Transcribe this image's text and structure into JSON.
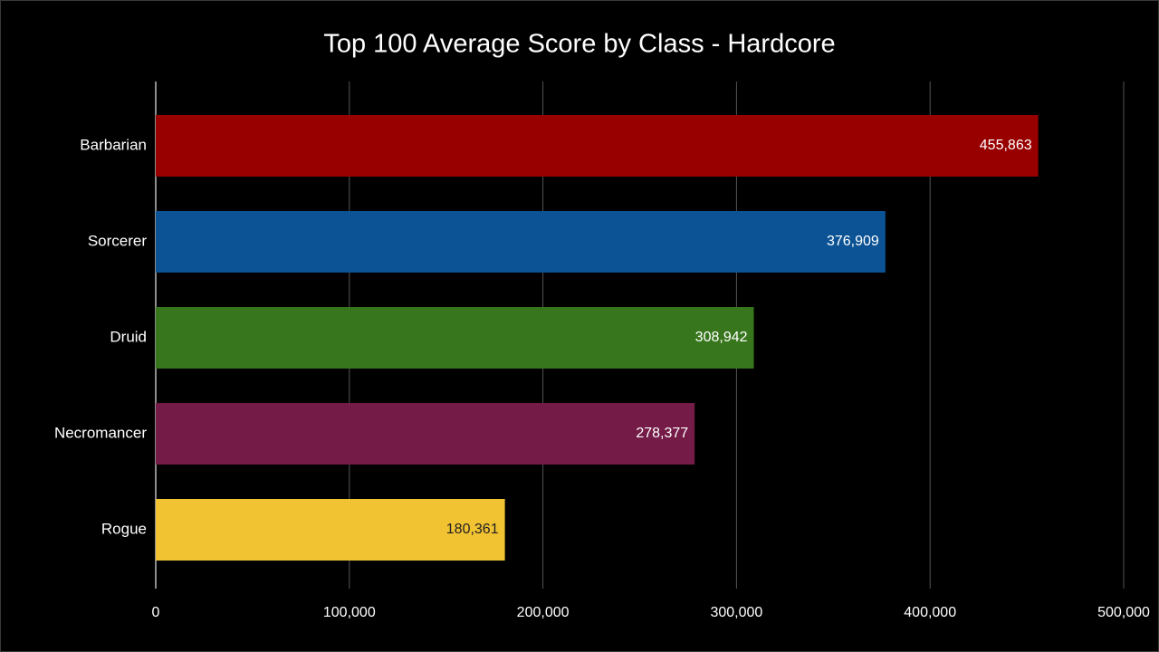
{
  "chart_data": {
    "type": "bar",
    "orientation": "horizontal",
    "title": "Top 100 Average Score by Class - Hardcore",
    "categories": [
      "Barbarian",
      "Sorcerer",
      "Druid",
      "Necromancer",
      "Rogue"
    ],
    "values": [
      455863,
      376909,
      308942,
      278377,
      180361
    ],
    "value_labels": [
      "455,863",
      "376,909",
      "308,942",
      "278,377",
      "180,361"
    ],
    "colors": [
      "#980000",
      "#0b5394",
      "#38761d",
      "#741b47",
      "#f1c232"
    ],
    "xlim": [
      0,
      500000
    ],
    "xticks": [
      0,
      {
        "value": 100000,
        "label": "100,000"
      },
      {
        "value": 200000,
        "label": "200,000"
      },
      {
        "value": 300000,
        "label": "300,000"
      },
      {
        "value": 400000,
        "label": "400,000"
      },
      {
        "value": 500000,
        "label": "500,000"
      }
    ],
    "grid": true
  }
}
